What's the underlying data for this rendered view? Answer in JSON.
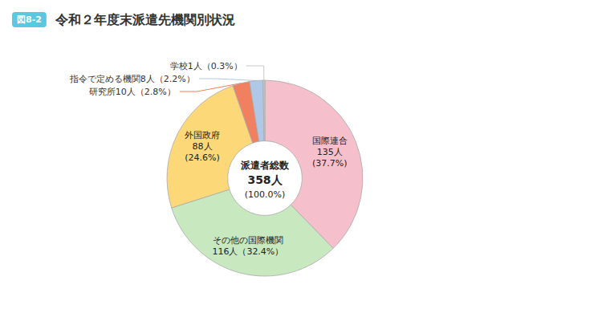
{
  "chart_data": {
    "type": "pie",
    "title": "令和２年度末派遣先機関別状況",
    "subtitle": "図8-2",
    "annotations": [
      "派遣者総数",
      "358人",
      "(100.0%)"
    ],
    "categories": [
      "国際連合",
      "その他の国際機関",
      "外国政府",
      "研究所",
      "指令で定める機関",
      "学校"
    ],
    "values": [
      37.7,
      32.4,
      24.6,
      2.8,
      2.2,
      0.3
    ],
    "value_labels": [
      "国際連合\n135人\n(37.7%)",
      "その他の国際機関\n116人（32.4%）",
      "外国政府\n88人\n(24.6%)",
      "研究所10人（2.8%）",
      "指令で定める機関8人（2.2%）",
      "学校1人（0.3%）"
    ],
    "colors": [
      "#f5c0cc",
      "#c8e8c0",
      "#fcd878",
      "#f08060",
      "#b0c8e8",
      "#c8c8c8"
    ],
    "data_labels": true
  }
}
